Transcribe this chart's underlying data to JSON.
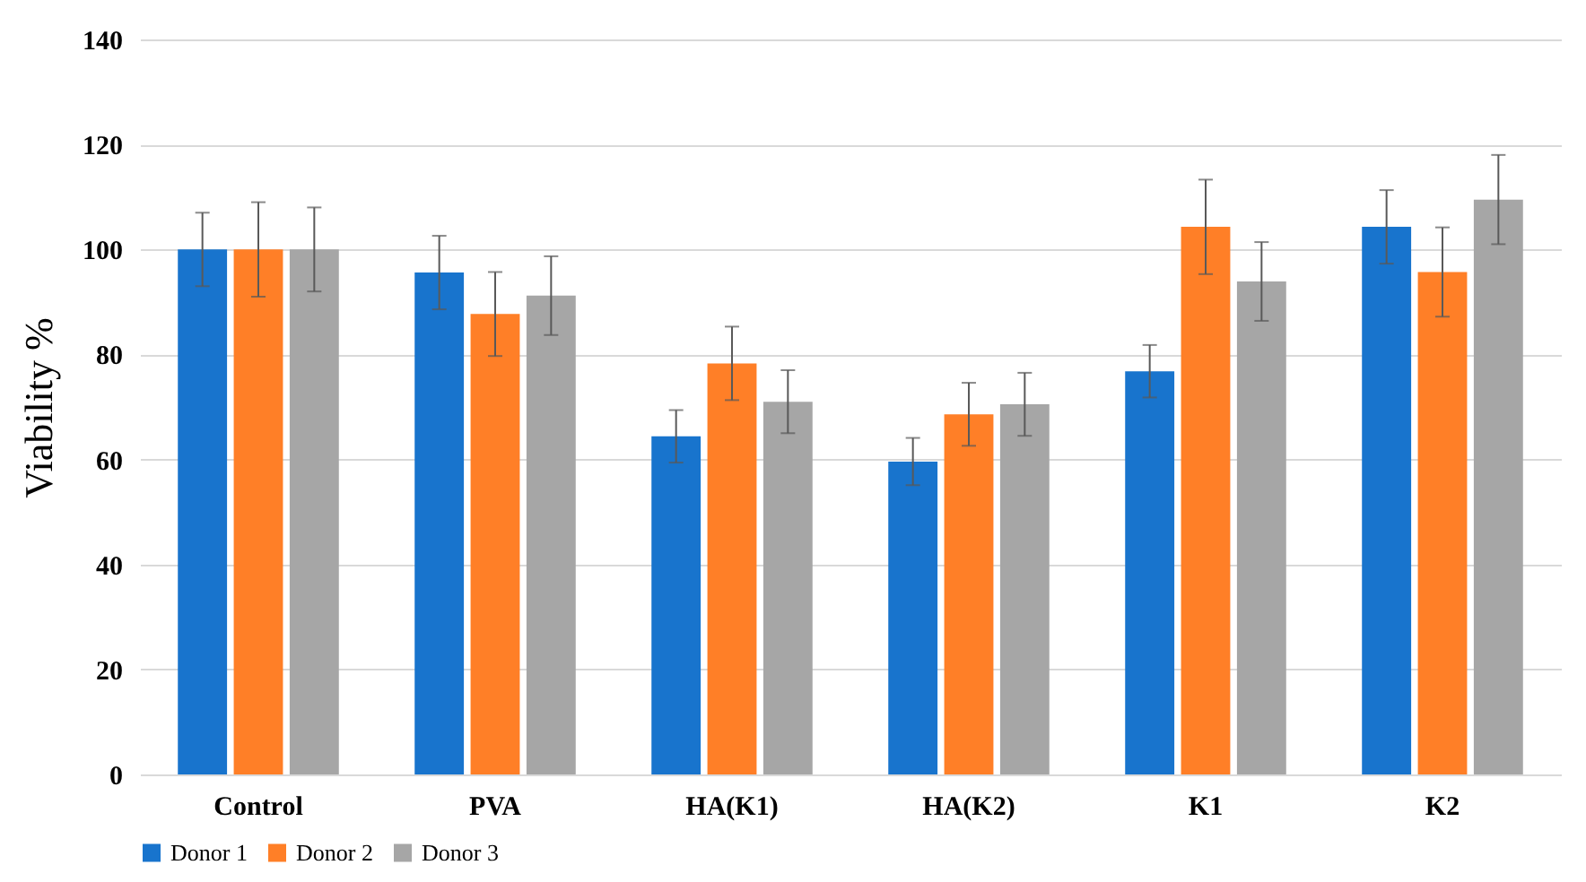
{
  "chart_data": {
    "type": "bar",
    "ylabel": "Viability %",
    "categories": [
      "Control",
      "PVA",
      "HA(K1)",
      "HA(K2)",
      "K1",
      "K2"
    ],
    "series": [
      {
        "name": "Donor 1",
        "color": "#1874cd",
        "values": [
          100,
          95.6,
          64.4,
          59.6,
          76.8,
          104.3
        ],
        "errors": [
          7,
          7,
          5,
          4.5,
          5,
          7
        ]
      },
      {
        "name": "Donor 2",
        "color": "#ff7f27",
        "values": [
          100,
          87.7,
          78.3,
          68.6,
          104.3,
          95.7
        ],
        "errors": [
          9,
          8,
          7,
          6,
          9,
          8.5
        ]
      },
      {
        "name": "Donor 3",
        "color": "#a6a6a6",
        "values": [
          100,
          91.2,
          71,
          70.5,
          93.9,
          109.5
        ],
        "errors": [
          8,
          7.5,
          6,
          6,
          7.5,
          8.5
        ]
      }
    ],
    "ylim": [
      0,
      140
    ],
    "yticks": [
      0,
      20,
      40,
      60,
      80,
      100,
      120,
      140
    ],
    "grid": "y",
    "legend": "bottom"
  }
}
